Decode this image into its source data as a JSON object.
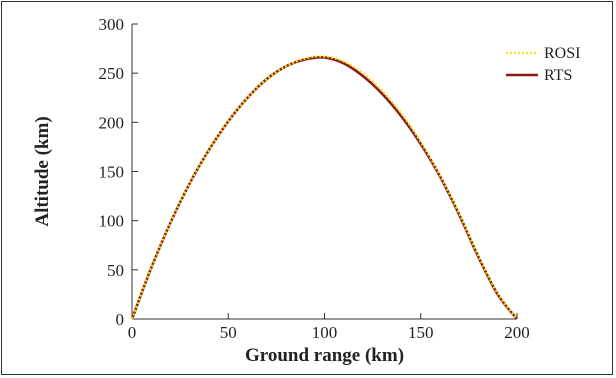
{
  "chart_data": {
    "type": "line",
    "title": "",
    "xlabel": "Ground range (km)",
    "ylabel": "Altitude (km)",
    "xlim": [
      0,
      200
    ],
    "ylim": [
      0,
      300
    ],
    "xticks": [
      0,
      50,
      100,
      150,
      200
    ],
    "yticks": [
      0,
      50,
      100,
      150,
      200,
      250,
      300
    ],
    "grid": false,
    "legend_position": "top-right",
    "series": [
      {
        "name": "ROSI",
        "color": "#f2e21a",
        "style": "dotted",
        "x": [
          0,
          10,
          20,
          30,
          40,
          50,
          60,
          70,
          80,
          90,
          100,
          110,
          120,
          130,
          140,
          150,
          160,
          170,
          180,
          190,
          200
        ],
        "y": [
          0,
          52,
          98,
          138,
          172,
          201,
          225,
          244,
          257,
          265,
          267,
          262,
          250,
          232,
          209,
          180,
          146,
          107,
          64,
          26,
          0
        ]
      },
      {
        "name": "RTS",
        "color": "#8b1a1a",
        "style": "solid",
        "x": [
          0,
          10,
          20,
          30,
          40,
          50,
          60,
          70,
          80,
          90,
          100,
          110,
          120,
          130,
          140,
          150,
          160,
          170,
          180,
          190,
          200
        ],
        "y": [
          0,
          52,
          98,
          138,
          172,
          201,
          225,
          244,
          257,
          264,
          266,
          260,
          247,
          229,
          206,
          178,
          145,
          106,
          63,
          25,
          0
        ]
      }
    ]
  }
}
